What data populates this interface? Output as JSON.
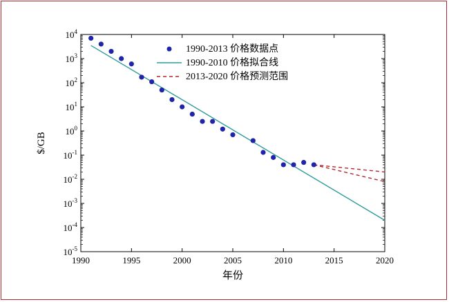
{
  "chart_data": {
    "type": "scatter",
    "xlabel": "年份",
    "ylabel": "$/GB",
    "xlim": [
      1990,
      2020
    ],
    "ylim_log10": [
      -5,
      4
    ],
    "yscale": "log",
    "x_ticks": [
      "1990",
      "1995",
      "2000",
      "2005",
      "2010",
      "2015",
      "2020"
    ],
    "y_ticks": [
      {
        "base": "10",
        "exp": "4",
        "value": 10000
      },
      {
        "base": "10",
        "exp": "3",
        "value": 1000
      },
      {
        "base": "10",
        "exp": "2",
        "value": 100
      },
      {
        "base": "10",
        "exp": "1",
        "value": 10
      },
      {
        "base": "10",
        "exp": "0",
        "value": 1
      },
      {
        "base": "10",
        "exp": "-1",
        "value": 0.1
      },
      {
        "base": "10",
        "exp": "-2",
        "value": 0.01
      },
      {
        "base": "10",
        "exp": "-3",
        "value": 0.001
      },
      {
        "base": "10",
        "exp": "-4",
        "value": 0.0001
      },
      {
        "base": "10",
        "exp": "-5",
        "value": 1e-05
      }
    ],
    "legend_position": "top-center",
    "series": [
      {
        "name": "1990-2013 价格数据点",
        "kind": "scatter",
        "color": "#1f24a8",
        "points": [
          {
            "x": 1991,
            "y": 7000
          },
          {
            "x": 1992,
            "y": 4000
          },
          {
            "x": 1993,
            "y": 2000
          },
          {
            "x": 1994,
            "y": 1000
          },
          {
            "x": 1995,
            "y": 600
          },
          {
            "x": 1996,
            "y": 170
          },
          {
            "x": 1997,
            "y": 110
          },
          {
            "x": 1998,
            "y": 50
          },
          {
            "x": 1999,
            "y": 20
          },
          {
            "x": 2000,
            "y": 10
          },
          {
            "x": 2001,
            "y": 5
          },
          {
            "x": 2002,
            "y": 2.5
          },
          {
            "x": 2003,
            "y": 2.5
          },
          {
            "x": 2004,
            "y": 1.2
          },
          {
            "x": 2005,
            "y": 0.7
          },
          {
            "x": 2007,
            "y": 0.4
          },
          {
            "x": 2008,
            "y": 0.13
          },
          {
            "x": 2009,
            "y": 0.08
          },
          {
            "x": 2010,
            "y": 0.04
          },
          {
            "x": 2011,
            "y": 0.04
          },
          {
            "x": 2012,
            "y": 0.05
          },
          {
            "x": 2013,
            "y": 0.04
          }
        ]
      },
      {
        "name": "1990-2010 价格拟合线",
        "kind": "line",
        "color": "#2e9a9a",
        "points": [
          {
            "x": 1991,
            "y": 3500
          },
          {
            "x": 2020,
            "y": 0.0002
          }
        ]
      },
      {
        "name": "2013-2020 价格预测范围",
        "kind": "dashed-range",
        "color": "#b8262b",
        "upper": [
          {
            "x": 2013,
            "y": 0.04
          },
          {
            "x": 2020,
            "y": 0.02
          }
        ],
        "lower": [
          {
            "x": 2013,
            "y": 0.04
          },
          {
            "x": 2020,
            "y": 0.008
          }
        ]
      }
    ]
  }
}
